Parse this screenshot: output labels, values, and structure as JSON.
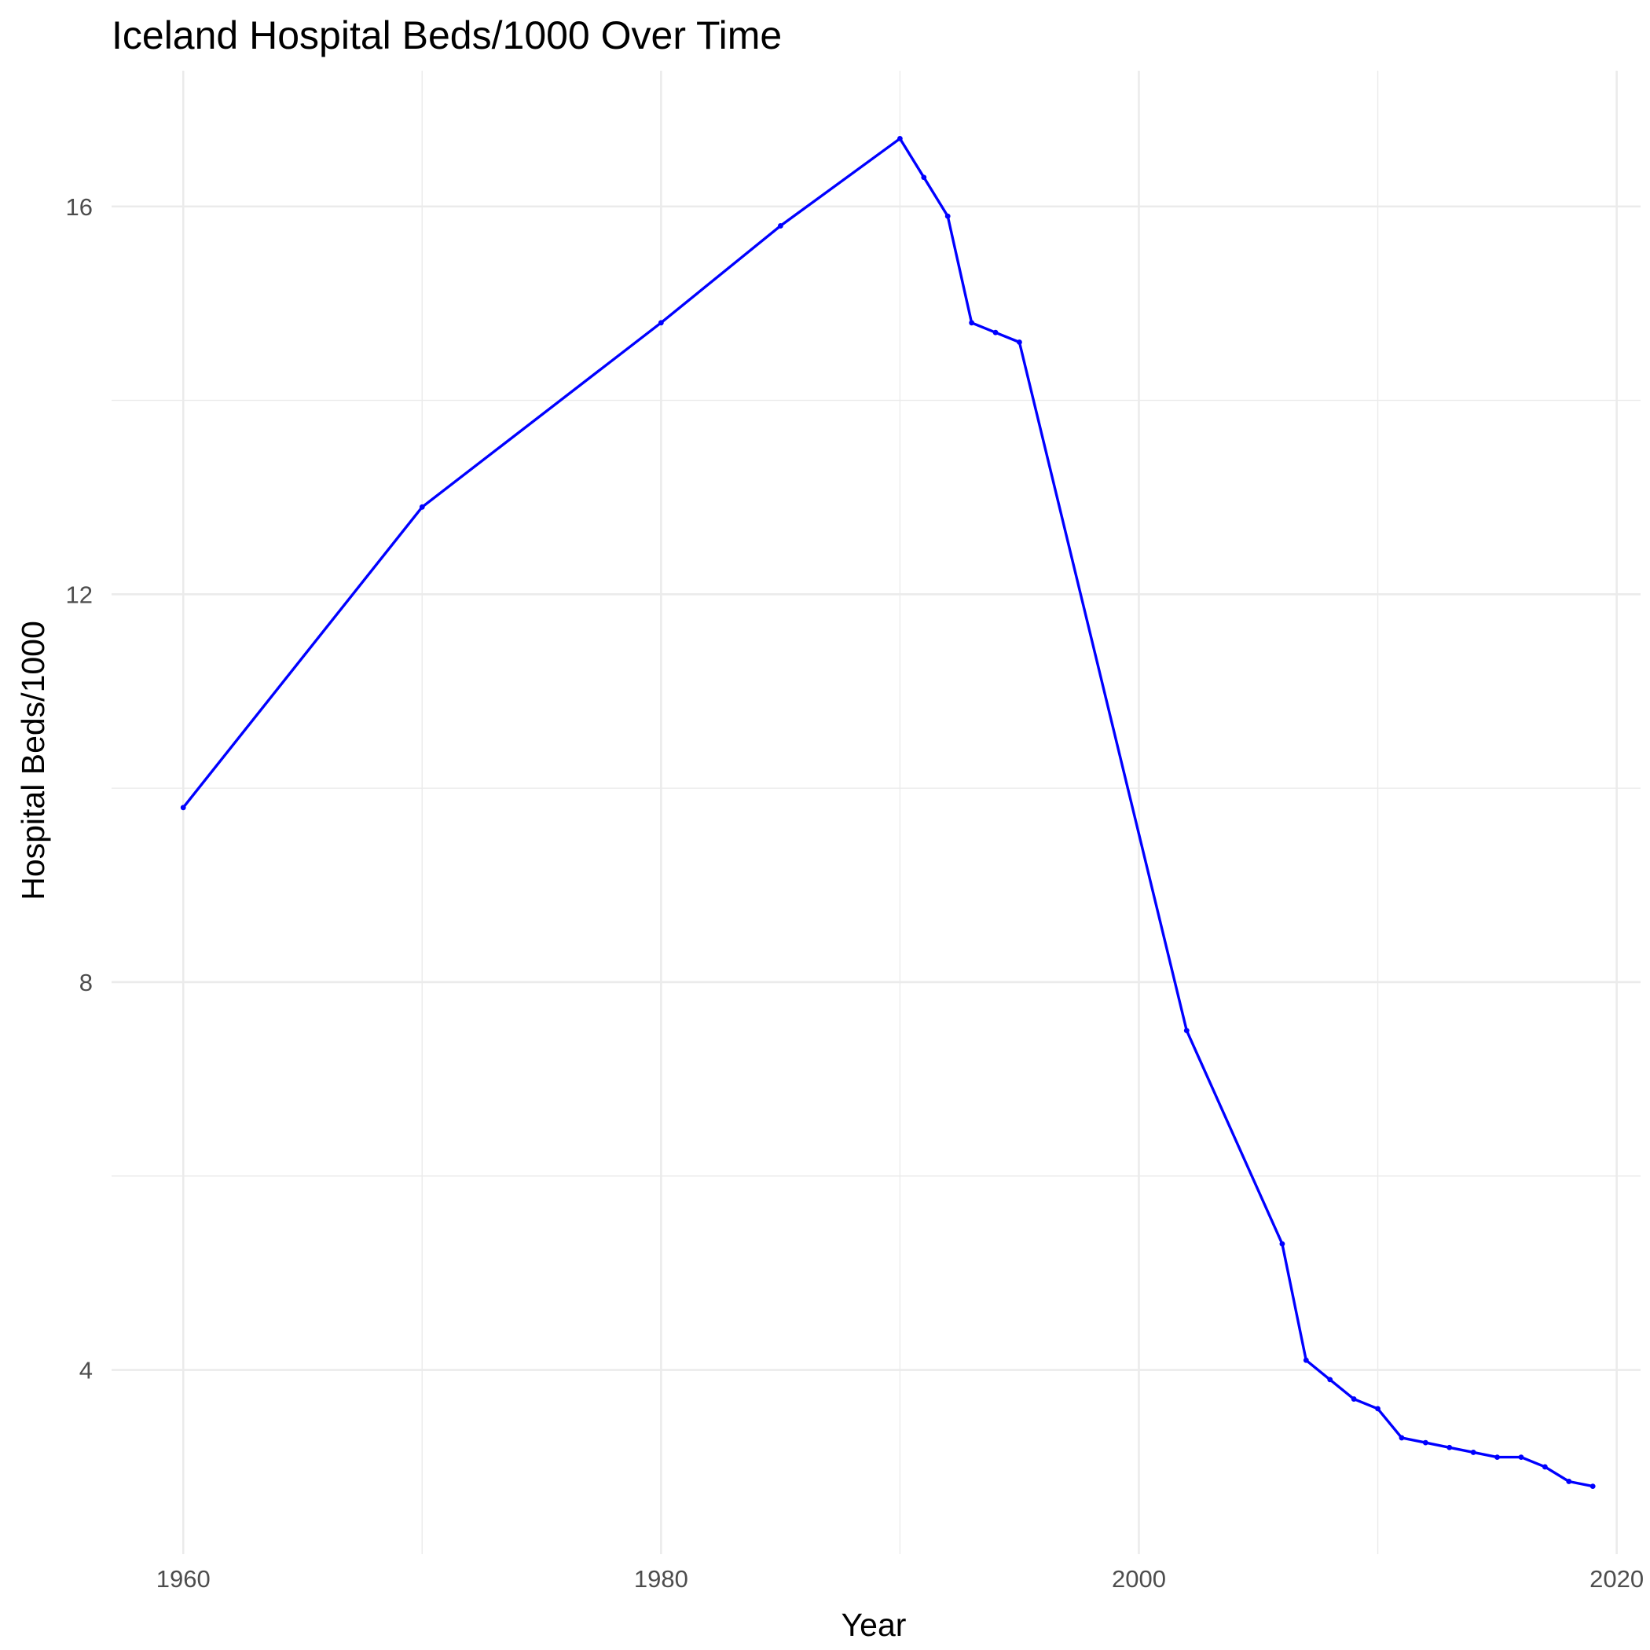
{
  "chart_data": {
    "type": "line",
    "title": "Iceland Hospital Beds/1000 Over Time",
    "xlabel": "Year",
    "ylabel": "Hospital Beds/1000",
    "xlim": [
      1957,
      2021
    ],
    "ylim": [
      2.1,
      17.4
    ],
    "x_ticks": [
      1960,
      1980,
      2000,
      2020
    ],
    "x_tick_labels": [
      "1960",
      "1980",
      "2000",
      "2020"
    ],
    "x_minor_ticks": [
      1970,
      1990,
      2010
    ],
    "y_ticks": [
      4,
      8,
      12,
      16
    ],
    "y_tick_labels": [
      "4",
      "8",
      "12",
      "16"
    ],
    "y_minor_ticks": [
      6,
      10,
      14
    ],
    "grid": true,
    "legend": "none",
    "line_color": "#0000ff",
    "series": [
      {
        "x": [
          1960,
          1970,
          1980,
          1985,
          1990,
          1991,
          1992,
          1993,
          1994,
          1995,
          2002,
          2006,
          2007,
          2008,
          2009,
          2010,
          2011,
          2012,
          2013,
          2014,
          2015,
          2016,
          2017,
          2018,
          2019
        ],
        "y": [
          9.8,
          12.9,
          14.8,
          15.8,
          16.7,
          16.3,
          15.9,
          14.8,
          14.7,
          14.6,
          7.5,
          5.3,
          4.1,
          3.9,
          3.7,
          3.6,
          3.3,
          3.25,
          3.2,
          3.15,
          3.1,
          3.1,
          3.0,
          2.85,
          2.8
        ]
      }
    ]
  }
}
